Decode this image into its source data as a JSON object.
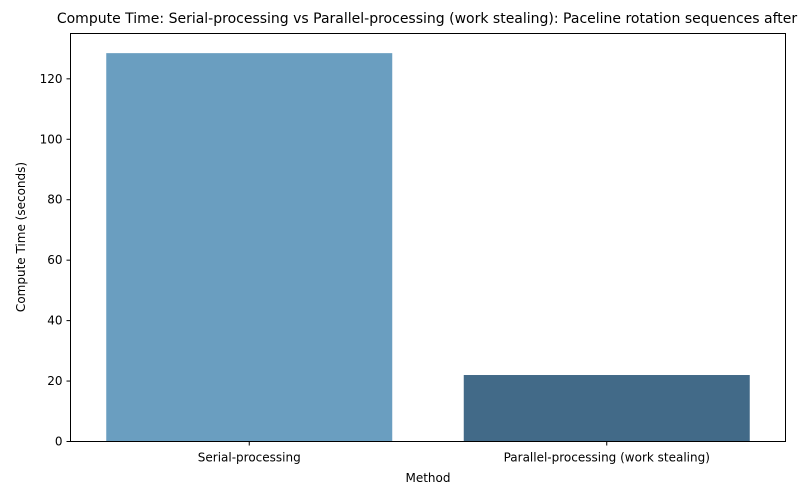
{
  "chart_data": {
    "type": "bar",
    "title": "Compute Time: Serial-processing vs Parallel-processing (work stealing): Paceline rotation sequences after",
    "xlabel": "Method",
    "ylabel": "Compute Time (seconds)",
    "categories": [
      "Serial-processing",
      "Parallel-processing (work stealing)"
    ],
    "values": [
      128.5,
      22.0
    ],
    "ylim": [
      0,
      135
    ],
    "yticks": [
      0,
      20,
      40,
      60,
      80,
      100,
      120
    ],
    "colors": [
      "#6a9ec0",
      "#426a88"
    ],
    "grid": false,
    "legend": "none"
  }
}
